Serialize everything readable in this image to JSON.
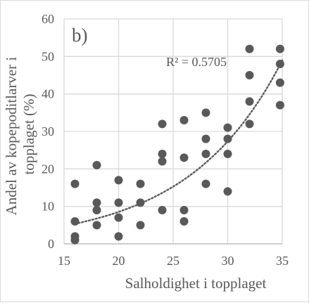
{
  "chart_data": {
    "type": "scatter",
    "panel_label": "b)",
    "xlabel": "Salholdighet i topplaget",
    "ylabel": "Andel av kopepoditlarver i topplaget (%)",
    "ylabel_lines": [
      "Andel av kopepoditlarver i",
      "topplaget (%)"
    ],
    "xlim": [
      15,
      35
    ],
    "ylim": [
      0,
      60
    ],
    "xticks": [
      15,
      20,
      25,
      30,
      35
    ],
    "yticks": [
      0,
      10,
      20,
      30,
      40,
      50,
      60
    ],
    "grid": "vertical and horizontal major gridlines",
    "marker_color": "#595959",
    "trendline": {
      "type": "exponential",
      "style": "dotted",
      "r2_label": "R² = 0.5705",
      "a": 0.83,
      "b": 0.1165
    },
    "points": [
      {
        "x": 16,
        "y": 1
      },
      {
        "x": 16,
        "y": 2
      },
      {
        "x": 16,
        "y": 6
      },
      {
        "x": 16,
        "y": 16
      },
      {
        "x": 18,
        "y": 5
      },
      {
        "x": 18,
        "y": 9
      },
      {
        "x": 18,
        "y": 11
      },
      {
        "x": 18,
        "y": 21
      },
      {
        "x": 20,
        "y": 2
      },
      {
        "x": 20,
        "y": 7
      },
      {
        "x": 20,
        "y": 11
      },
      {
        "x": 20,
        "y": 17
      },
      {
        "x": 22,
        "y": 5
      },
      {
        "x": 22,
        "y": 11
      },
      {
        "x": 22,
        "y": 16
      },
      {
        "x": 24,
        "y": 9
      },
      {
        "x": 24,
        "y": 22
      },
      {
        "x": 24,
        "y": 24
      },
      {
        "x": 24,
        "y": 32
      },
      {
        "x": 26,
        "y": 6
      },
      {
        "x": 26,
        "y": 9
      },
      {
        "x": 26,
        "y": 23
      },
      {
        "x": 26,
        "y": 33
      },
      {
        "x": 28,
        "y": 16
      },
      {
        "x": 28,
        "y": 24
      },
      {
        "x": 28,
        "y": 28
      },
      {
        "x": 28,
        "y": 35
      },
      {
        "x": 30,
        "y": 14
      },
      {
        "x": 30,
        "y": 24
      },
      {
        "x": 30,
        "y": 28
      },
      {
        "x": 30,
        "y": 31
      },
      {
        "x": 32,
        "y": 32
      },
      {
        "x": 32,
        "y": 38
      },
      {
        "x": 32,
        "y": 45
      },
      {
        "x": 32,
        "y": 52
      },
      {
        "x": 34.8,
        "y": 37
      },
      {
        "x": 34.8,
        "y": 43
      },
      {
        "x": 34.8,
        "y": 48
      },
      {
        "x": 34.8,
        "y": 52
      }
    ]
  }
}
